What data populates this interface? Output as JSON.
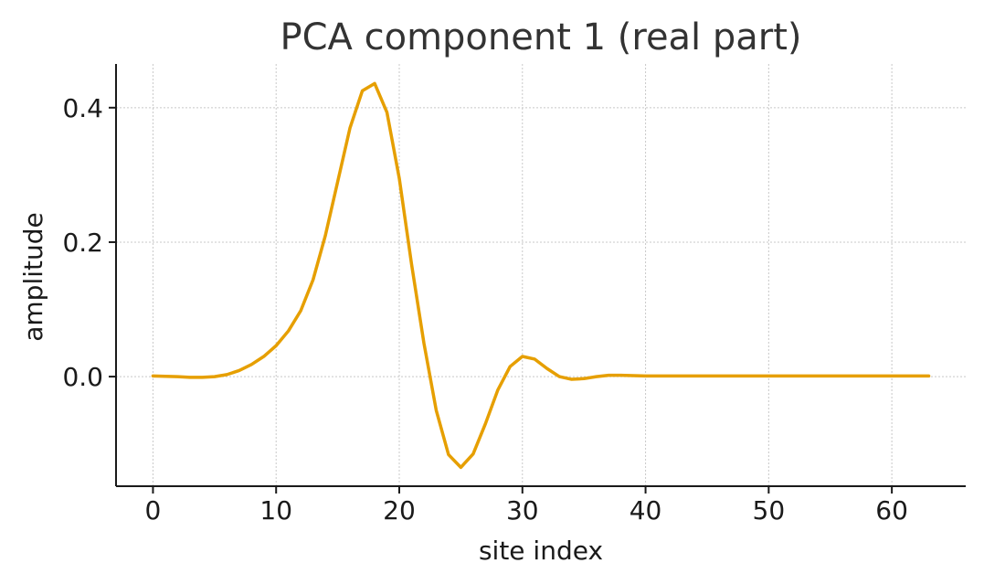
{
  "chart_data": {
    "type": "line",
    "title": "PCA component 1 (real part)",
    "xlabel": "site index",
    "ylabel": "amplitude",
    "xlim": [
      -3,
      66
    ],
    "ylim": [
      -0.163,
      0.465
    ],
    "xticks": [
      0,
      10,
      20,
      30,
      40,
      50,
      60
    ],
    "xtick_labels": [
      "0",
      "10",
      "20",
      "30",
      "40",
      "50",
      "60"
    ],
    "yticks": [
      0.0,
      0.2,
      0.4
    ],
    "ytick_labels": [
      "0.0",
      "0.2",
      "0.4"
    ],
    "grid": true,
    "line_color": "#e69f00",
    "series": [
      {
        "x": [
          0,
          1,
          2,
          3,
          4,
          5,
          6,
          7,
          8,
          9,
          10,
          11,
          12,
          13,
          14,
          15,
          16,
          17,
          18,
          19,
          20,
          21,
          22,
          23,
          24,
          25,
          26,
          27,
          28,
          29,
          30,
          31,
          32,
          33,
          34,
          35,
          36,
          37,
          38,
          39,
          40,
          41,
          42,
          43,
          44,
          45,
          46,
          47,
          48,
          49,
          50,
          51,
          52,
          53,
          54,
          55,
          56,
          57,
          58,
          59,
          60,
          61,
          62,
          63
        ],
        "y": [
          0.001,
          0.0005,
          0.0,
          -0.001,
          -0.001,
          0.0,
          0.003,
          0.009,
          0.018,
          0.03,
          0.046,
          0.068,
          0.098,
          0.144,
          0.21,
          0.29,
          0.37,
          0.425,
          0.436,
          0.393,
          0.295,
          0.167,
          0.05,
          -0.05,
          -0.116,
          -0.135,
          -0.115,
          -0.07,
          -0.02,
          0.015,
          0.03,
          0.026,
          0.012,
          0.0,
          -0.004,
          -0.003,
          0.0,
          0.002,
          0.002,
          0.0015,
          0.001,
          0.001,
          0.001,
          0.001,
          0.001,
          0.001,
          0.001,
          0.001,
          0.001,
          0.001,
          0.001,
          0.001,
          0.001,
          0.001,
          0.001,
          0.001,
          0.001,
          0.001,
          0.001,
          0.001,
          0.001,
          0.001,
          0.001,
          0.001
        ]
      }
    ]
  }
}
